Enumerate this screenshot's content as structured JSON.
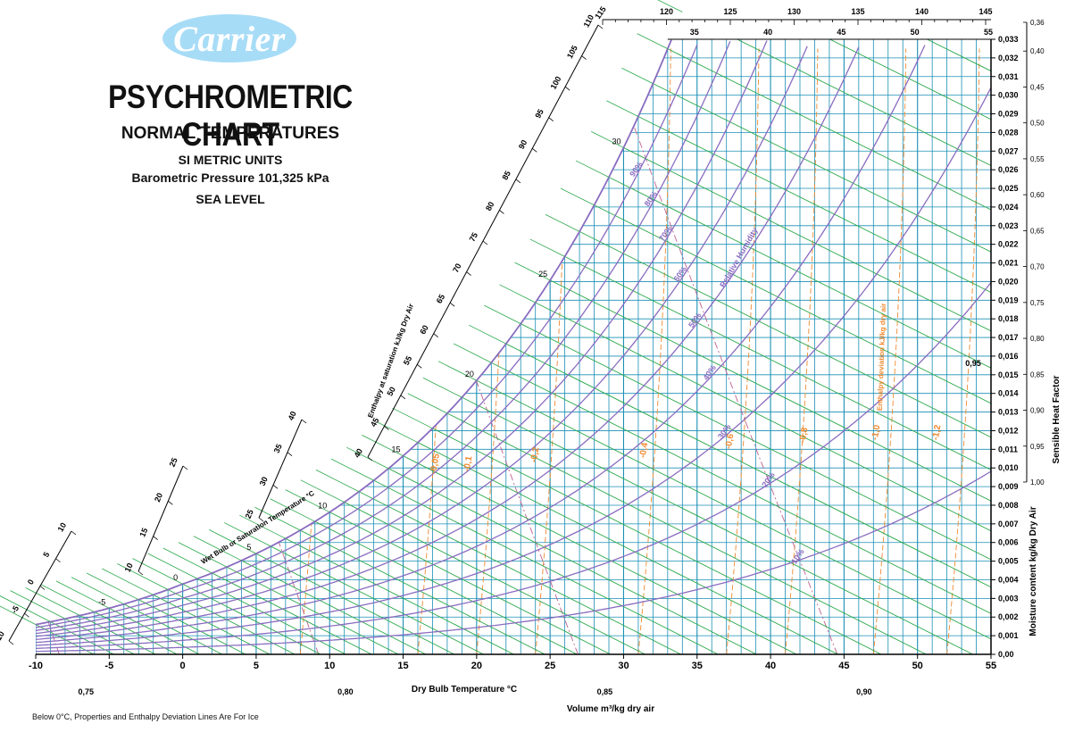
{
  "header": {
    "logo_text": "Carrier",
    "title": "PSYCHROMETRIC CHART",
    "subtitle": "NORMAL TEMPERATURES",
    "units": "SI METRIC UNITS",
    "pressure": "Barometric Pressure 101,325 kPa",
    "level": "SEA LEVEL"
  },
  "footnote": "Below 0°C,  Properties and Enthalpy Deviation Lines Are For Ice",
  "chart_data": {
    "type": "psychrometric",
    "xlabel": "Dry Bulb Temperature   °C",
    "ylabel": "Moisture content  kg/kg Dry Air",
    "shf_label": "Sensible Heat Factor",
    "wetbulb_label": "Wet Bulb or Saturation Temperature  °C",
    "enthalpy_label": "Enthalpy at saturation  kJ/kg Dry Air",
    "volume_label": "Volume m³/kg dry air",
    "rh_label": "Relative Humidity",
    "enth_dev_label": "Enthalpy deviation  kJ/kg dry air",
    "xlim": [
      -10,
      55
    ],
    "ylim": [
      0,
      0.033
    ],
    "x_ticks": [
      "-10",
      "-5",
      "0",
      "5",
      "10",
      "15",
      "20",
      "25",
      "30",
      "35",
      "40",
      "45",
      "50",
      "55"
    ],
    "y_ticks": [
      "0,00",
      "0,001",
      "0,002",
      "0,003",
      "0,004",
      "0,005",
      "0,006",
      "0,007",
      "0,008",
      "0,009",
      "0,010",
      "0,011",
      "0,012",
      "0,013",
      "0,014",
      "0,015",
      "0,016",
      "0,017",
      "0,018",
      "0,019",
      "0,020",
      "0,021",
      "0,022",
      "0,023",
      "0,024",
      "0,025",
      "0,026",
      "0,027",
      "0,028",
      "0,029",
      "0,030",
      "0,031",
      "0,032",
      "0,033"
    ],
    "top_temp_ticks": [
      "35",
      "40",
      "45",
      "50",
      "55"
    ],
    "top_enthalpy_ticks": [
      "115",
      "120",
      "125",
      "130",
      "135",
      "140",
      "145"
    ],
    "enthalpy_scale_upper": [
      "40",
      "45",
      "50",
      "55",
      "60",
      "65",
      "70",
      "75",
      "80",
      "85",
      "90",
      "95",
      "100",
      "105",
      "110"
    ],
    "enthalpy_scale_mid": [
      "25",
      "30",
      "35",
      "40"
    ],
    "enthalpy_scale_lower": [
      "10",
      "15",
      "20",
      "25"
    ],
    "enthalpy_scale_low": [
      "-10",
      "-5",
      "0",
      "5",
      "10"
    ],
    "wetbulb_ticks": [
      "-5",
      "0",
      "5",
      "10",
      "15",
      "20",
      "25",
      "30"
    ],
    "rh_curves": [
      {
        "rh": 10,
        "label": "10%"
      },
      {
        "rh": 20,
        "label": "20%"
      },
      {
        "rh": 30,
        "label": "30%"
      },
      {
        "rh": 40,
        "label": "40%"
      },
      {
        "rh": 50,
        "label": "50%"
      },
      {
        "rh": 60,
        "label": "60%"
      },
      {
        "rh": 70,
        "label": "70%"
      },
      {
        "rh": 80,
        "label": "80%"
      },
      {
        "rh": 90,
        "label": "90%"
      }
    ],
    "volume_ticks": [
      "0,75",
      "0,80",
      "0,85",
      "0,90"
    ],
    "enthalpy_deviation_labels": [
      "-0,05",
      "-0,1",
      "-0,2",
      "-0,4",
      "-0,6",
      "-0,8",
      "-1,0",
      "-1,2"
    ],
    "shf_ticks": [
      "0,36",
      "0,40",
      "0,45",
      "0,50",
      "0,55",
      "0,60",
      "0,65",
      "0,70",
      "0,75",
      "0,80",
      "0,85",
      "0,90",
      "0,95",
      "1,00"
    ],
    "shf_point_label": "0,95",
    "colors": {
      "grid": "#1a8fb5",
      "wetbulb": "#2aa84a",
      "rh": "#8a6cc0",
      "volume": "#c06090",
      "enthalpy_dev": "#f08a30",
      "axis": "#000000"
    }
  }
}
